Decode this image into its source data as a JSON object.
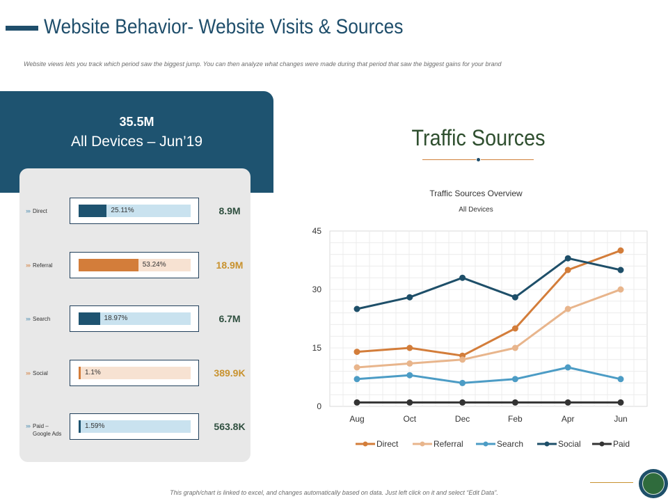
{
  "header": {
    "title": "Website Behavior- Website Visits & Sources",
    "subtitle": "Website views lets you track which period saw the biggest jump. You can then analyze what changes were made during that period that saw the biggest gains for your brand"
  },
  "summary": {
    "total": "35.5M",
    "period": "All Devices – Jun’19"
  },
  "sources": [
    {
      "label": "Direct",
      "pct_label": "25.11%",
      "pct": 25.11,
      "metric": "8.9M",
      "chevron": "›››",
      "fill_color": "#1e5370",
      "track_color": "#c9e2ef",
      "chev_color": "#4d8db1",
      "metric_color": "#2f4f3f"
    },
    {
      "label": "Referral",
      "pct_label": "53.24%",
      "pct": 53.24,
      "metric": "18.9M",
      "chevron": "›››",
      "fill_color": "#d37d3a",
      "track_color": "#f7e2d2",
      "chev_color": "#d37d3a",
      "metric_color": "#c8922e"
    },
    {
      "label": "Search",
      "pct_label": "18.97%",
      "pct": 18.97,
      "metric": "6.7M",
      "chevron": "›››",
      "fill_color": "#1e5370",
      "track_color": "#c9e2ef",
      "chev_color": "#4d8db1",
      "metric_color": "#2f4f3f"
    },
    {
      "label": "Social",
      "pct_label": "1.1%",
      "pct": 1.1,
      "metric": "389.9K",
      "chevron": "›››",
      "fill_color": "#d37d3a",
      "track_color": "#f7e2d2",
      "chev_color": "#d37d3a",
      "metric_color": "#c8922e"
    },
    {
      "label": "Paid – Google Ads",
      "pct_label": "1.59%",
      "pct": 1.59,
      "metric": "563.8K",
      "chevron": "›››",
      "fill_color": "#1e5370",
      "track_color": "#c9e2ef",
      "chev_color": "#4d8db1",
      "metric_color": "#2f4f3f"
    }
  ],
  "chart_heading": "Traffic Sources",
  "chart_data": {
    "type": "line",
    "title": "Traffic Sources Overview",
    "subtitle": "All Devices",
    "categories": [
      "Aug",
      "Oct",
      "Dec",
      "Feb",
      "Apr",
      "Jun"
    ],
    "ylim": [
      0,
      45
    ],
    "yticks": [
      0,
      15,
      30,
      45
    ],
    "grid": true,
    "legend": "bottom",
    "series": [
      {
        "name": "Direct",
        "color": "#d37d3a",
        "values": [
          14,
          15,
          13,
          20,
          35,
          40
        ]
      },
      {
        "name": "Referral",
        "color": "#e8b58c",
        "values": [
          10,
          11,
          12,
          15,
          25,
          30
        ]
      },
      {
        "name": "Search",
        "color": "#4c9cc5",
        "values": [
          7,
          8,
          6,
          7,
          10,
          7
        ]
      },
      {
        "name": "Social",
        "color": "#1e4f69",
        "values": [
          25,
          28,
          33,
          28,
          38,
          35
        ]
      },
      {
        "name": "Paid",
        "color": "#333333",
        "values": [
          1,
          1,
          1,
          1,
          1,
          1
        ]
      }
    ]
  },
  "footer": {
    "note": "This graph/chart is linked to excel, and changes automatically based on data. Just left click on it and select “Edit Data”."
  }
}
